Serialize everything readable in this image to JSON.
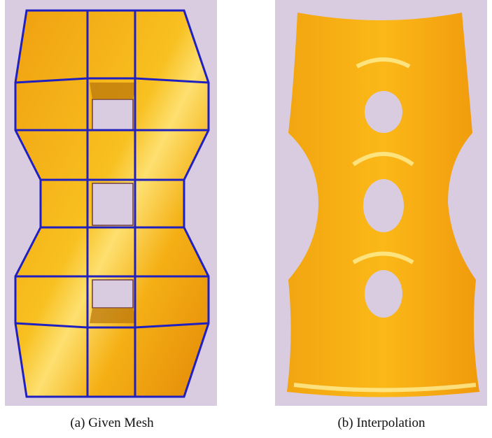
{
  "figure": {
    "panels": [
      {
        "caption": "(a) Given Mesh"
      },
      {
        "caption": "(b) Interpolation"
      }
    ]
  }
}
